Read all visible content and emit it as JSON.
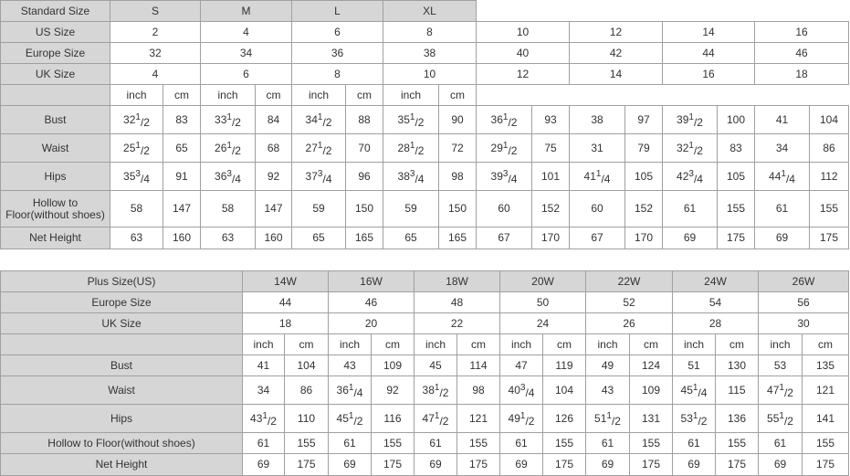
{
  "table1": {
    "header": {
      "label": "Standard Size",
      "sizes": [
        "S",
        "M",
        "L",
        "XL"
      ]
    },
    "rows_simple": [
      {
        "label": "US Size",
        "values": [
          "2",
          "4",
          "6",
          "8",
          "10",
          "12",
          "14",
          "16"
        ]
      },
      {
        "label": "Europe Size",
        "values": [
          "32",
          "34",
          "36",
          "38",
          "40",
          "42",
          "44",
          "46"
        ]
      },
      {
        "label": "UK Size",
        "values": [
          "4",
          "6",
          "8",
          "10",
          "12",
          "14",
          "16",
          "18"
        ]
      }
    ],
    "units": [
      "inch",
      "cm"
    ],
    "rows": [
      {
        "label": "Bust",
        "values": [
          "32 1/2",
          "83",
          "33 1/2",
          "84",
          "34 1/2",
          "88",
          "35 1/2",
          "90",
          "36 1/2",
          "93",
          "38",
          "97",
          "39 1/2",
          "100",
          "41",
          "104"
        ]
      },
      {
        "label": "Waist",
        "values": [
          "25 1/2",
          "65",
          "26 1/2",
          "68",
          "27 1/2",
          "70",
          "28 1/2",
          "72",
          "29 1/2",
          "75",
          "31",
          "79",
          "32 1/2",
          "83",
          "34",
          "86"
        ]
      },
      {
        "label": "Hips",
        "values": [
          "35 3/4",
          "91",
          "36 3/4",
          "92",
          "37 3/4",
          "96",
          "38 3/4",
          "98",
          "39 3/4",
          "101",
          "41 1/4",
          "105",
          "42 3/4",
          "105",
          "44 1/4",
          "112"
        ]
      },
      {
        "label": "Hollow to Floor(without shoes)",
        "values": [
          "58",
          "147",
          "58",
          "147",
          "59",
          "150",
          "59",
          "150",
          "60",
          "152",
          "60",
          "152",
          "61",
          "155",
          "61",
          "155"
        ]
      },
      {
        "label": "Net Height",
        "values": [
          "63",
          "160",
          "63",
          "160",
          "65",
          "165",
          "65",
          "165",
          "67",
          "170",
          "67",
          "170",
          "69",
          "175",
          "69",
          "175"
        ]
      }
    ]
  },
  "table2": {
    "header": {
      "label": "Plus Size(US)",
      "sizes": [
        "14W",
        "16W",
        "18W",
        "20W",
        "22W",
        "24W",
        "26W"
      ]
    },
    "rows_simple": [
      {
        "label": "Europe Size",
        "values": [
          "44",
          "46",
          "48",
          "50",
          "52",
          "54",
          "56"
        ]
      },
      {
        "label": "UK Size",
        "values": [
          "18",
          "20",
          "22",
          "24",
          "26",
          "28",
          "30"
        ]
      }
    ],
    "units": [
      "inch",
      "cm"
    ],
    "rows": [
      {
        "label": "Bust",
        "values": [
          "41",
          "104",
          "43",
          "109",
          "45",
          "114",
          "47",
          "119",
          "49",
          "124",
          "51",
          "130",
          "53",
          "135"
        ]
      },
      {
        "label": "Waist",
        "values": [
          "34",
          "86",
          "36 1/4",
          "92",
          "38 1/2",
          "98",
          "40 3/4",
          "104",
          "43",
          "109",
          "45 1/4",
          "115",
          "47 1/2",
          "121"
        ]
      },
      {
        "label": "Hips",
        "values": [
          "43 1/2",
          "110",
          "45 1/2",
          "116",
          "47 1/2",
          "121",
          "49 1/2",
          "126",
          "51 1/2",
          "131",
          "53 1/2",
          "136",
          "55 1/2",
          "141"
        ]
      },
      {
        "label": "Hollow to Floor(without shoes)",
        "values": [
          "61",
          "155",
          "61",
          "155",
          "61",
          "155",
          "61",
          "155",
          "61",
          "155",
          "61",
          "155",
          "61",
          "155"
        ]
      },
      {
        "label": "Net Height",
        "values": [
          "69",
          "175",
          "69",
          "175",
          "69",
          "175",
          "69",
          "175",
          "69",
          "175",
          "69",
          "175",
          "69",
          "175"
        ]
      }
    ]
  }
}
